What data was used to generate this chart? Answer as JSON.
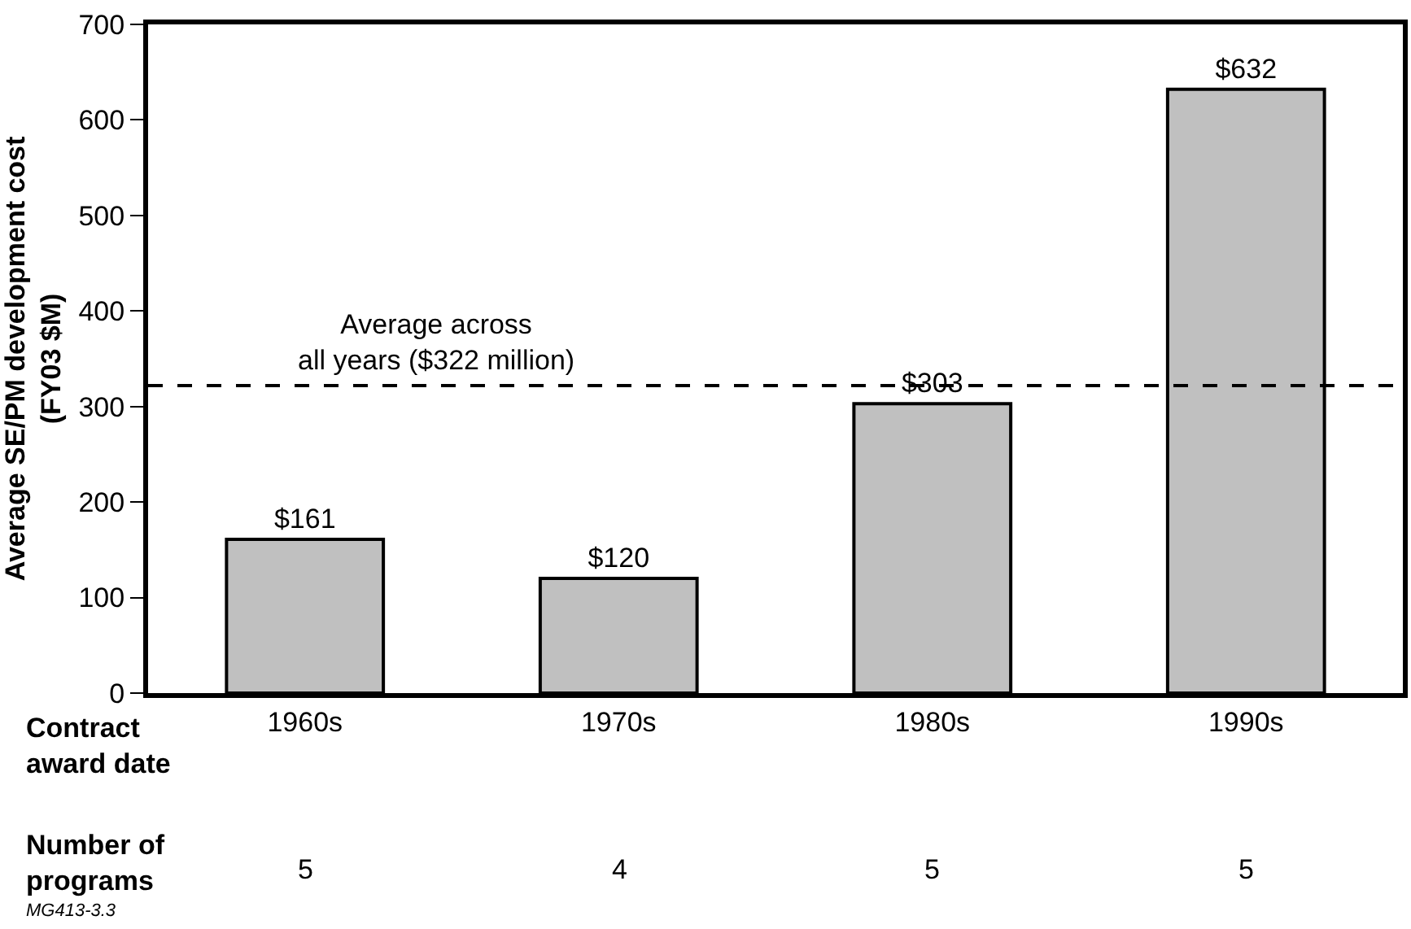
{
  "chart_data": {
    "type": "bar",
    "categories": [
      "1960s",
      "1970s",
      "1980s",
      "1990s"
    ],
    "values": [
      161,
      120,
      303,
      632
    ],
    "color": "#c0c0c0",
    "value_labels": [
      "$161",
      "$120",
      "$303",
      "$632"
    ],
    "ylabel": "Average SE/PM development cost\n(FY03 $M)",
    "xlabel": "Contract\naward date",
    "ylim": [
      0,
      700
    ],
    "yticks": [
      0,
      100,
      200,
      300,
      400,
      500,
      600,
      700
    ],
    "ref_lines": [
      {
        "axis": "y",
        "value": 322,
        "label": "Average across\nall years ($322 million)",
        "line_style": "dashed",
        "color": "#000000"
      }
    ],
    "annotations": [
      "Number of\nprograms",
      "5",
      "4",
      "5",
      "5",
      "MG413-3.3"
    ],
    "legend": false
  }
}
